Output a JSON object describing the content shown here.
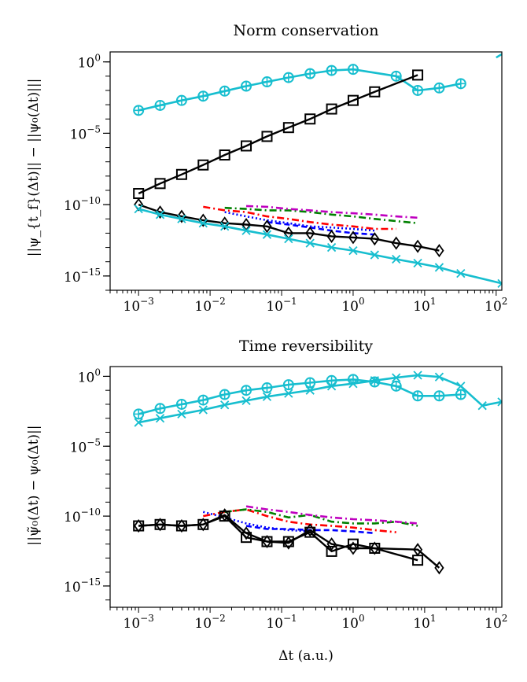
{
  "figure": {
    "shared_xlabel": "Δt (a.u.)"
  },
  "chart_data": [
    {
      "type": "line",
      "title": "Norm conservation",
      "xlabel": "",
      "ylabel": "||ψ_{t_f}(Δt)|| − ||ψ₀(Δt)|||",
      "xscale": "log",
      "yscale": "log",
      "xlim": [
        0.0004,
        120
      ],
      "ylim": [
        1e-16,
        5
      ],
      "xticks": [
        {
          "v": 0.001,
          "e": "-3"
        },
        {
          "v": 0.01,
          "e": "-2"
        },
        {
          "v": 0.1,
          "e": "-1"
        },
        {
          "v": 1,
          "e": "0"
        },
        {
          "v": 10,
          "e": "1"
        },
        {
          "v": 100,
          "e": "2"
        }
      ],
      "yticks": [
        {
          "v": 1,
          "e": "0"
        },
        {
          "v": 1e-05,
          "e": "-5"
        },
        {
          "v": 1e-10,
          "e": "-10"
        },
        {
          "v": 1e-15,
          "e": "-15"
        }
      ],
      "series": [
        {
          "name": "cyan circles",
          "color": "#17becf",
          "dash": "solid",
          "marker": "circleplus",
          "width": 2.6,
          "x": [
            0.001,
            0.002,
            0.004,
            0.008,
            0.016,
            0.032,
            0.0625,
            0.125,
            0.25,
            0.5,
            1,
            4,
            8,
            16,
            32
          ],
          "y": [
            0.0004,
            0.0009,
            0.002,
            0.004,
            0.009,
            0.02,
            0.04,
            0.08,
            0.15,
            0.25,
            0.3,
            0.1,
            0.01,
            0.015,
            0.03
          ]
        },
        {
          "name": "cyan x tail",
          "color": "#17becf",
          "dash": "solid",
          "marker": "none",
          "width": 2.6,
          "x": [
            100,
            120
          ],
          "y": [
            2,
            3.5
          ]
        },
        {
          "name": "black squares",
          "color": "#000000",
          "dash": "solid",
          "marker": "square",
          "width": 2.4,
          "x": [
            0.001,
            0.002,
            0.004,
            0.008,
            0.016,
            0.032,
            0.0625,
            0.125,
            0.25,
            0.5,
            1,
            2,
            8
          ],
          "y": [
            6e-10,
            3e-09,
            1.3e-08,
            6e-08,
            3e-07,
            1.3e-06,
            6e-06,
            2.5e-05,
            0.0001,
            0.0005,
            0.002,
            0.008,
            0.12
          ]
        },
        {
          "name": "red dash-dot",
          "color": "#ff0000",
          "dash": "9,4,2,4",
          "marker": "none",
          "width": 2.6,
          "x": [
            0.008,
            0.016,
            0.032,
            0.0625,
            0.125,
            0.25,
            0.5,
            1,
            2,
            4
          ],
          "y": [
            7e-11,
            4e-11,
            3e-11,
            1.5e-11,
            1e-11,
            6e-12,
            4e-12,
            3e-12,
            2e-12,
            2e-12
          ]
        },
        {
          "name": "green dash-dot",
          "color": "#008000",
          "dash": "9,4,2,4",
          "marker": "none",
          "width": 2.6,
          "x": [
            0.016,
            0.032,
            0.0625,
            0.125,
            0.25,
            0.5,
            1,
            2,
            4,
            8
          ],
          "y": [
            6e-11,
            5e-11,
            4e-11,
            4e-11,
            3e-11,
            2e-11,
            1.5e-11,
            1e-11,
            7e-12,
            5e-12
          ]
        },
        {
          "name": "magenta dash-dot",
          "color": "#bf00bf",
          "dash": "9,4,2,4",
          "marker": "none",
          "width": 2.6,
          "x": [
            0.032,
            0.0625,
            0.125,
            0.25,
            0.5,
            1,
            2,
            4,
            8
          ],
          "y": [
            8e-11,
            7e-11,
            5e-11,
            4e-11,
            3e-11,
            2.5e-11,
            2e-11,
            1.5e-11,
            1.2e-11
          ]
        },
        {
          "name": "blue dotted",
          "color": "#0000ff",
          "dash": "2,3",
          "marker": "none",
          "width": 2.6,
          "x": [
            0.016,
            0.032,
            0.0625,
            0.125,
            0.25,
            0.5,
            1,
            2
          ],
          "y": [
            3e-11,
            1.5e-11,
            8e-12,
            5e-12,
            3e-12,
            2.5e-12,
            2e-12,
            1.5e-12
          ]
        },
        {
          "name": "blue dashed",
          "color": "#0000ff",
          "dash": "7,4",
          "marker": "none",
          "width": 2.6,
          "x": [
            0.0625,
            0.125,
            0.25,
            0.5,
            1,
            2
          ],
          "y": [
            6e-12,
            4e-12,
            2.5e-12,
            1.5e-12,
            1e-12,
            8e-13
          ]
        },
        {
          "name": "black diamonds",
          "color": "#000000",
          "dash": "solid",
          "marker": "diamond",
          "width": 2.4,
          "x": [
            0.001,
            0.002,
            0.004,
            0.008,
            0.016,
            0.032,
            0.0625,
            0.125,
            0.25,
            0.5,
            1,
            2,
            4,
            8,
            16
          ],
          "y": [
            1e-10,
            3e-11,
            1.5e-11,
            8e-12,
            5e-12,
            4e-12,
            3e-12,
            1e-12,
            1e-12,
            6e-13,
            5e-13,
            4e-13,
            2e-13,
            1.2e-13,
            6e-14
          ]
        },
        {
          "name": "cyan x",
          "color": "#17becf",
          "dash": "solid",
          "marker": "x",
          "width": 2.6,
          "x": [
            0.001,
            0.002,
            0.004,
            0.008,
            0.016,
            0.032,
            0.0625,
            0.125,
            0.25,
            0.5,
            1,
            2,
            4,
            8,
            16,
            32,
            120
          ],
          "y": [
            5e-11,
            2e-11,
            1e-11,
            5e-12,
            3e-12,
            1.5e-12,
            8e-13,
            4e-13,
            2e-13,
            1e-13,
            6e-14,
            3e-14,
            1.5e-14,
            8e-15,
            4e-15,
            1.5e-15,
            3e-16
          ]
        }
      ]
    },
    {
      "type": "line",
      "title": "Time reversibility",
      "xlabel": "Δt (a.u.)",
      "ylabel": "||ψ̃₀(Δt) − ψ₀(Δt)||",
      "xscale": "log",
      "yscale": "log",
      "xlim": [
        0.0004,
        120
      ],
      "ylim": [
        3e-17,
        5
      ],
      "xticks": [
        {
          "v": 0.001,
          "e": "-3"
        },
        {
          "v": 0.01,
          "e": "-2"
        },
        {
          "v": 0.1,
          "e": "-1"
        },
        {
          "v": 1,
          "e": "0"
        },
        {
          "v": 10,
          "e": "1"
        },
        {
          "v": 100,
          "e": "2"
        }
      ],
      "yticks": [
        {
          "v": 1,
          "e": "0"
        },
        {
          "v": 1e-05,
          "e": "-5"
        },
        {
          "v": 1e-10,
          "e": "-10"
        },
        {
          "v": 1e-15,
          "e": "-15"
        }
      ],
      "series": [
        {
          "name": "cyan circles",
          "color": "#17becf",
          "dash": "solid",
          "marker": "circleplus",
          "width": 2.6,
          "x": [
            0.001,
            0.002,
            0.004,
            0.008,
            0.016,
            0.032,
            0.0625,
            0.125,
            0.25,
            0.5,
            1,
            2,
            4,
            8,
            16,
            32
          ],
          "y": [
            0.002,
            0.005,
            0.01,
            0.02,
            0.05,
            0.1,
            0.15,
            0.25,
            0.35,
            0.5,
            0.6,
            0.4,
            0.2,
            0.04,
            0.04,
            0.05
          ]
        },
        {
          "name": "cyan x",
          "color": "#17becf",
          "dash": "solid",
          "marker": "x",
          "width": 2.6,
          "x": [
            0.001,
            0.002,
            0.004,
            0.008,
            0.016,
            0.032,
            0.0625,
            0.125,
            0.25,
            0.5,
            1,
            2,
            4,
            8,
            16,
            32,
            64,
            120
          ],
          "y": [
            0.0005,
            0.001,
            0.002,
            0.004,
            0.009,
            0.018,
            0.035,
            0.06,
            0.1,
            0.2,
            0.3,
            0.5,
            0.8,
            1.2,
            0.9,
            0.2,
            0.008,
            0.015
          ]
        },
        {
          "name": "red dash-dot",
          "color": "#ff0000",
          "dash": "9,4,2,4",
          "marker": "none",
          "width": 2.6,
          "x": [
            0.008,
            0.016,
            0.032,
            0.0625,
            0.125,
            0.25,
            0.5,
            1,
            2,
            4
          ],
          "y": [
            1e-10,
            2e-10,
            3e-10,
            1e-10,
            4e-11,
            2.5e-11,
            2e-11,
            1.5e-11,
            1e-11,
            7e-12
          ]
        },
        {
          "name": "green dash-dot",
          "color": "#008000",
          "dash": "9,4,2,4",
          "marker": "none",
          "width": 2.6,
          "x": [
            0.016,
            0.032,
            0.0625,
            0.125,
            0.25,
            0.5,
            1,
            2,
            4,
            8
          ],
          "y": [
            2e-10,
            3e-10,
            2e-10,
            8e-11,
            1.2e-10,
            4e-11,
            3e-11,
            3e-11,
            4e-11,
            2e-11
          ]
        },
        {
          "name": "magenta dash-dot",
          "color": "#bf00bf",
          "dash": "9,4,2,4",
          "marker": "none",
          "width": 2.6,
          "x": [
            0.032,
            0.0625,
            0.125,
            0.25,
            0.5,
            1,
            2,
            4,
            8
          ],
          "y": [
            5e-10,
            3e-10,
            2e-10,
            1.2e-10,
            8e-11,
            6e-11,
            5e-11,
            4e-11,
            3e-11
          ]
        },
        {
          "name": "blue dotted",
          "color": "#0000ff",
          "dash": "2,3",
          "marker": "none",
          "width": 2.6,
          "x": [
            0.008,
            0.016,
            0.032,
            0.0625,
            0.125,
            0.25
          ],
          "y": [
            2e-10,
            8e-11,
            3e-11,
            1.5e-11,
            1e-11,
            8e-12
          ]
        },
        {
          "name": "blue dashed",
          "color": "#0000ff",
          "dash": "7,4",
          "marker": "none",
          "width": 2.6,
          "x": [
            0.032,
            0.0625,
            0.125,
            0.25,
            0.5,
            1,
            2
          ],
          "y": [
            2e-11,
            1.2e-11,
            1.2e-11,
            1e-11,
            1e-11,
            8e-12,
            6e-12
          ]
        },
        {
          "name": "black squares",
          "color": "#000000",
          "dash": "solid",
          "marker": "square",
          "width": 2.4,
          "x": [
            0.001,
            0.002,
            0.004,
            0.008,
            0.016,
            0.032,
            0.0625,
            0.125,
            0.25,
            0.5,
            1,
            2,
            8
          ],
          "y": [
            2e-11,
            2.5e-11,
            2e-11,
            2.5e-11,
            1e-10,
            3e-12,
            1.5e-12,
            1.5e-12,
            7e-12,
            3e-13,
            1e-12,
            5e-13,
            7e-14
          ]
        },
        {
          "name": "black diamonds",
          "color": "#000000",
          "dash": "solid",
          "marker": "diamond",
          "width": 2.4,
          "x": [
            0.001,
            0.002,
            0.004,
            0.008,
            0.016,
            0.032,
            0.0625,
            0.125,
            0.25,
            0.5,
            1,
            2,
            8,
            16
          ],
          "y": [
            2e-11,
            2.5e-11,
            2e-11,
            2.5e-11,
            1.2e-10,
            6e-12,
            1.5e-12,
            1.2e-12,
            1e-11,
            1e-12,
            5e-13,
            5e-13,
            4e-13,
            2e-14
          ]
        }
      ]
    }
  ]
}
